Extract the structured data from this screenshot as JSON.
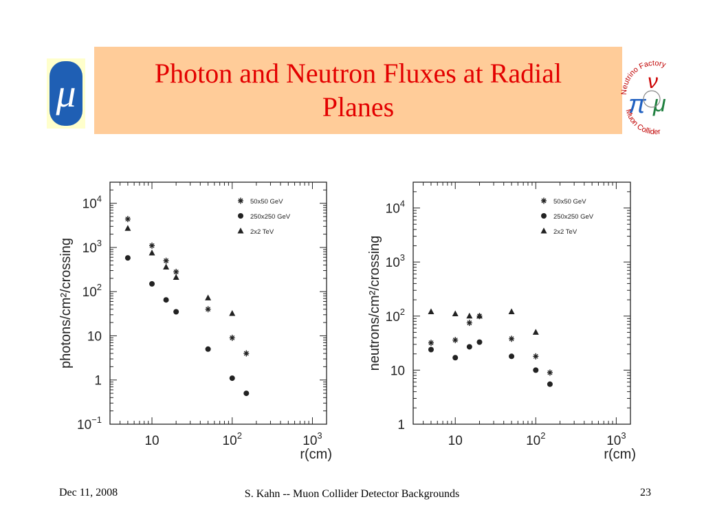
{
  "slide": {
    "title": "Photon and Neutron Fluxes at Radial Planes",
    "logo_symbol": "μ",
    "logo_name": "mu-logo",
    "nf_logo": {
      "top_text": "Neutrino Factory",
      "bottom_text": "Muon Collider",
      "colors": {
        "ring": "#c00000",
        "nu": "#cc0000",
        "pi": "#2060c0",
        "mu": "#208040",
        "text": "#c00000"
      }
    },
    "footer": {
      "date": "Dec 11, 2008",
      "center": "S. Kahn -- Muon Collider Detector Backgrounds",
      "page": "23"
    }
  },
  "chart_data": [
    {
      "type": "scatter",
      "xscale": "log",
      "yscale": "log",
      "xlabel": "r(cm)",
      "ylabel": "photons/cm²/crossing",
      "xlim": [
        3,
        1500
      ],
      "ylim": [
        0.1,
        30000
      ],
      "x_ticks": [
        {
          "value": 10,
          "label": "10"
        },
        {
          "value": 100,
          "label": "10",
          "sup": "2"
        },
        {
          "value": 1000,
          "label": "10",
          "sup": "3"
        }
      ],
      "y_ticks": [
        {
          "value": 0.1,
          "label": "10",
          "sup": "−1"
        },
        {
          "value": 1,
          "label": "1"
        },
        {
          "value": 10,
          "label": "10"
        },
        {
          "value": 100,
          "label": "10",
          "sup": "2"
        },
        {
          "value": 1000,
          "label": "10",
          "sup": "3"
        },
        {
          "value": 10000,
          "label": "10",
          "sup": "4"
        }
      ],
      "legend_position": "top-right",
      "series": [
        {
          "name": "50x50 GeV",
          "marker": "star",
          "x": [
            5,
            10,
            15,
            20,
            50,
            100,
            150
          ],
          "y": [
            4400,
            1100,
            500,
            280,
            40,
            9,
            4
          ]
        },
        {
          "name": "250x250 GeV",
          "marker": "circle",
          "x": [
            5,
            10,
            15,
            20,
            50,
            100,
            150
          ],
          "y": [
            580,
            150,
            65,
            35,
            5,
            1.1,
            0.5
          ]
        },
        {
          "name": "2x2 TeV",
          "marker": "triangle",
          "x": [
            5,
            10,
            15,
            20,
            50,
            100
          ],
          "y": [
            2700,
            750,
            360,
            210,
            72,
            32
          ]
        }
      ]
    },
    {
      "type": "scatter",
      "xscale": "log",
      "yscale": "log",
      "xlabel": "r(cm)",
      "ylabel": "neutrons/cm²/crossing",
      "xlim": [
        3,
        1500
      ],
      "ylim": [
        1,
        30000
      ],
      "x_ticks": [
        {
          "value": 10,
          "label": "10"
        },
        {
          "value": 100,
          "label": "10",
          "sup": "2"
        },
        {
          "value": 1000,
          "label": "10",
          "sup": "3"
        }
      ],
      "y_ticks": [
        {
          "value": 1,
          "label": "1"
        },
        {
          "value": 10,
          "label": "10"
        },
        {
          "value": 100,
          "label": "10",
          "sup": "2"
        },
        {
          "value": 1000,
          "label": "10",
          "sup": "3"
        },
        {
          "value": 10000,
          "label": "10",
          "sup": "4"
        }
      ],
      "legend_position": "top-right",
      "series": [
        {
          "name": "50x50 GeV",
          "marker": "star",
          "x": [
            5,
            10,
            15,
            20,
            50,
            100,
            150
          ],
          "y": [
            32,
            36,
            75,
            100,
            38,
            18,
            9
          ]
        },
        {
          "name": "250x250 GeV",
          "marker": "circle",
          "x": [
            5,
            10,
            15,
            20,
            50,
            100,
            150
          ],
          "y": [
            24,
            17,
            27,
            33,
            18,
            10,
            5.5
          ]
        },
        {
          "name": "2x2 TeV",
          "marker": "triangle",
          "x": [
            5,
            10,
            15,
            20,
            50,
            100
          ],
          "y": [
            120,
            110,
            100,
            100,
            120,
            50
          ]
        }
      ]
    }
  ]
}
